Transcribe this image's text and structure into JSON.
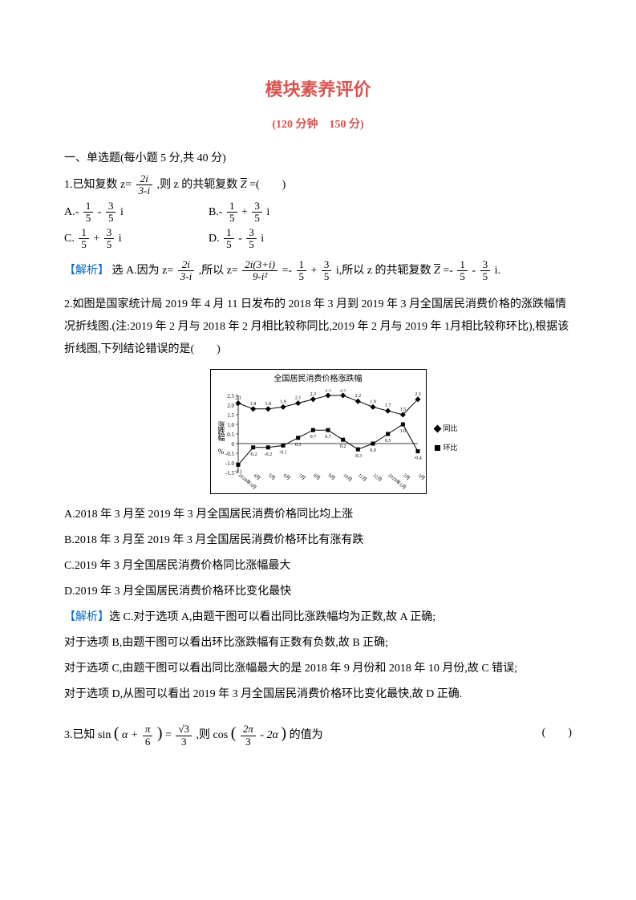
{
  "title": "模块素养评价",
  "subtitle": "(120 分钟　150 分)",
  "section1_header": "一、单选题(每小题 5 分,共 40 分)",
  "q1": {
    "stem_prefix": "1.已知复数 z=",
    "frac_num": "2i",
    "frac_den": "3-i",
    "stem_suffix": ",则 z 的共轭复数",
    "zbar": "Z",
    "eq_tail": "=(　　)",
    "options": {
      "A_prefix": "A.-",
      "B_prefix": "B.-",
      "C_prefix": "C.",
      "D_prefix": "D.",
      "f1n": "1",
      "f1d": "5",
      "f3n": "3",
      "f3d": "5",
      "A_mid": "-",
      "A_suf": "i",
      "B_mid": "+",
      "B_suf": "i",
      "C_mid": "+",
      "C_suf": "i",
      "D_mid": "-",
      "D_suf": "i"
    },
    "analysis_label": "【解析】",
    "analysis_text1": "选 A.因为 z=",
    "analysis_frac1_num": "2i",
    "analysis_frac1_den": "3-i",
    "analysis_text2": ",所以 z=",
    "analysis_frac2_num": "2i(3+i)",
    "analysis_frac2_den": "9-i²",
    "analysis_text3": "=-",
    "analysis_text4": "+",
    "analysis_text5": "i,所以 z 的共轭复数",
    "analysis_text6": "=-",
    "analysis_text7": "-",
    "analysis_text8": "i."
  },
  "q2": {
    "stem": "2.如图是国家统计局 2019 年 4 月 11 日发布的 2018 年 3 月到 2019 年 3 月全国居民消费价格的涨跌幅情况折线图.(注:2019 年 2 月与 2018 年 2 月相比较称同比,2019 年 2 月与 2019 年 1月相比较称环比),根据该折线图,下列结论错误的是(　　)",
    "chart": {
      "title": "全国居民消费价格涨跌幅",
      "ylabel": "涨跌幅 %",
      "y_ticks": [
        "2.5",
        "2.0",
        "1.5",
        "1.0",
        "0.5",
        "0",
        "-0.5",
        "-1.0",
        "-1.5"
      ],
      "x_labels": [
        "2018年3月",
        "4月",
        "5月",
        "6月",
        "7月",
        "8月",
        "9月",
        "10月",
        "11月",
        "12月",
        "2019年1月",
        "2月",
        "3月"
      ],
      "series": [
        {
          "name": "同比",
          "marker": "diamond",
          "color": "#000000",
          "labels": [
            "2.1",
            "1.8",
            "1.8",
            "1.9",
            "2.1",
            "2.3",
            "2.5",
            "2.5",
            "2.2",
            "1.9",
            "1.7",
            "1.5",
            "2.3"
          ],
          "values": [
            2.1,
            1.8,
            1.8,
            1.9,
            2.1,
            2.3,
            2.5,
            2.5,
            2.2,
            1.9,
            1.7,
            1.5,
            2.3
          ]
        },
        {
          "name": "环比",
          "marker": "square",
          "color": "#000000",
          "labels": [
            "-1.1",
            "-0.2",
            "-0.2",
            "-0.1",
            "0.3",
            "0.7",
            "0.7",
            "0.2",
            "-0.3",
            "0.0",
            "0.5",
            "1.0",
            "-0.4"
          ],
          "values": [
            -1.1,
            -0.2,
            -0.2,
            -0.1,
            0.3,
            0.7,
            0.7,
            0.2,
            -0.3,
            0.0,
            0.5,
            1.0,
            -0.4
          ]
        }
      ],
      "legend": [
        "同比",
        "环比"
      ]
    },
    "optA": "A.2018 年 3 月至 2019 年 3 月全国居民消费价格同比均上涨",
    "optB": "B.2018 年 3 月至 2019 年 3 月全国居民消费价格环比有涨有跌",
    "optC": "C.2019 年 3 月全国居民消费价格同比涨幅最大",
    "optD": "D.2019 年 3 月全国居民消费价格环比变化最快",
    "analysis_label": "【解析】",
    "ana1": "选 C.对于选项 A,由题干图可以看出同比涨跌幅均为正数,故 A 正确;",
    "ana2": "对于选项 B,由题干图可以看出环比涨跌幅有正数有负数,故 B 正确;",
    "ana3": "对于选项 C,由题干图可以看出同比涨幅最大的是 2018 年 9 月份和 2018 年 10 月份,故 C 错误;",
    "ana4": "对于选项 D,从图可以看出 2019 年 3 月全国居民消费价格环比变化最快,故 D 正确."
  },
  "q3": {
    "prefix": "3.已知 sin",
    "inner1_l": "(",
    "inner1": "α + ",
    "inner1_frac_n": "π",
    "inner1_frac_d": "6",
    "inner1_r": ")",
    "eq": "=",
    "rhs_frac_n": "√3",
    "rhs_frac_d": "3",
    "mid": ",则 cos",
    "inner2_l": "(",
    "inner2_frac_n": "2π",
    "inner2_frac_d": "3",
    "inner2_mid": " - 2α",
    "inner2_r": ")",
    "suffix": "的值为",
    "paren": "(　　)"
  }
}
